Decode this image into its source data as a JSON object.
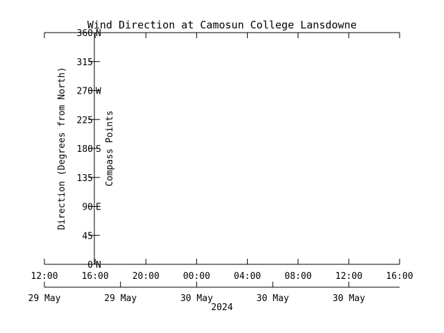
{
  "chart_data": {
    "type": "line",
    "title": "Wind Direction at Camosun College Lansdowne",
    "ylabel": "Direction (Degrees from North)",
    "ylabel_right": "Compass Points",
    "xlabel": "2024",
    "ylim": [
      0,
      360
    ],
    "yticks": [
      0,
      45,
      90,
      135,
      180,
      225,
      270,
      315,
      360
    ],
    "yticks_labels": [
      "0",
      "45",
      "90",
      "135",
      "180",
      "225",
      "270",
      "315",
      "360"
    ],
    "compass_ticks": [
      {
        "value": 0,
        "label": "N"
      },
      {
        "value": 90,
        "label": "E"
      },
      {
        "value": 180,
        "label": "S"
      },
      {
        "value": 270,
        "label": "W"
      },
      {
        "value": 360,
        "label": "N"
      }
    ],
    "x_time_ticks": [
      {
        "hours": 0,
        "label": "12:00"
      },
      {
        "hours": 4,
        "label": "16:00"
      },
      {
        "hours": 8,
        "label": "20:00"
      },
      {
        "hours": 12,
        "label": "00:00"
      },
      {
        "hours": 16,
        "label": "04:00"
      },
      {
        "hours": 20,
        "label": "08:00"
      },
      {
        "hours": 24,
        "label": "12:00"
      },
      {
        "hours": 28,
        "label": "16:00"
      }
    ],
    "x_date_ticks": [
      {
        "hours": 0,
        "label": "29 May"
      },
      {
        "hours": 6,
        "label": "29 May"
      },
      {
        "hours": 12,
        "label": "30 May"
      },
      {
        "hours": 18,
        "label": "30 May"
      },
      {
        "hours": 24,
        "label": "30 May"
      }
    ],
    "xlim_hours": [
      0,
      28
    ],
    "series": []
  }
}
